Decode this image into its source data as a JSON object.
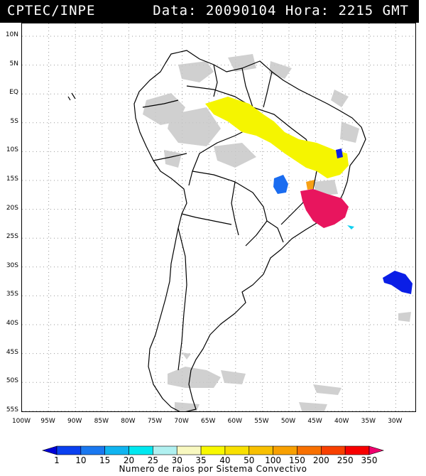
{
  "header": {
    "source": "CPTEC/INPE",
    "datetime": "Data: 20090104 Hora: 2215 GMT"
  },
  "map": {
    "lat_labels": [
      "10N",
      "5N",
      "EQ",
      "5S",
      "10S",
      "15S",
      "20S",
      "25S",
      "30S",
      "35S",
      "40S",
      "45S",
      "50S",
      "55S"
    ],
    "lon_labels": [
      "100W",
      "95W",
      "90W",
      "85W",
      "80W",
      "75W",
      "70W",
      "65W",
      "60W",
      "55W",
      "50W",
      "45W",
      "40W",
      "35W",
      "30W"
    ],
    "colors": {
      "land_outline": "#000000",
      "cloud_gray": "#c8c8c8",
      "yellow": "#f5f500",
      "blue": "#1a6cf0",
      "dark_blue": "#0a1ee6",
      "magenta": "#e8155e",
      "orange": "#f7a014",
      "cyan": "#10d0f0"
    }
  },
  "scale": {
    "values": [
      "1",
      "10",
      "15",
      "20",
      "25",
      "30",
      "35",
      "40",
      "50",
      "100",
      "150",
      "200",
      "250",
      "350"
    ],
    "colors": [
      "#0000d8",
      "#0a40f0",
      "#1a78f0",
      "#10b4f0",
      "#00e8f0",
      "#b0f0f0",
      "#f8f8c0",
      "#f8f800",
      "#f8e000",
      "#f8c000",
      "#f8a000",
      "#f87000",
      "#f84000",
      "#f80000",
      "#f0006e"
    ],
    "caption": "Numero de raios por Sistema Convectivo"
  }
}
